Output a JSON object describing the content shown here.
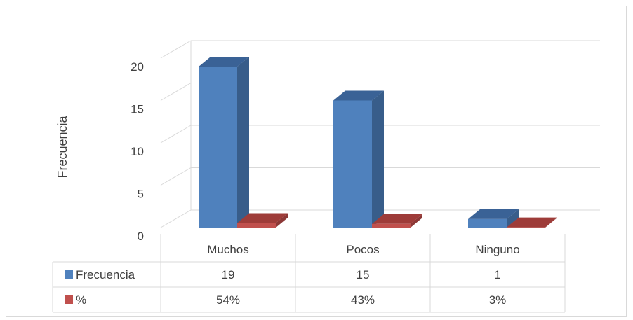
{
  "chart_data": {
    "type": "bar",
    "categories": [
      "Muchos",
      "Pocos",
      "Ninguno"
    ],
    "series": [
      {
        "name": "Frecuencia",
        "values": [
          19,
          15,
          1
        ],
        "table_values": [
          "19",
          "15",
          "1"
        ],
        "color": "#4f81bd",
        "side_color": "#385d8a",
        "top_color": "#3a6296"
      },
      {
        "name": "%",
        "values": [
          0.54,
          0.43,
          0.03
        ],
        "table_values": [
          "54%",
          "43%",
          "3%"
        ],
        "color": "#c0504d",
        "side_color": "#8c3836",
        "top_color": "#9e3c39"
      }
    ],
    "ylabel": "Frecuencia",
    "ylim": [
      0,
      20
    ],
    "yticks": [
      "0",
      "5",
      "10",
      "15",
      "20"
    ],
    "grid": true,
    "legend": "data-table"
  }
}
